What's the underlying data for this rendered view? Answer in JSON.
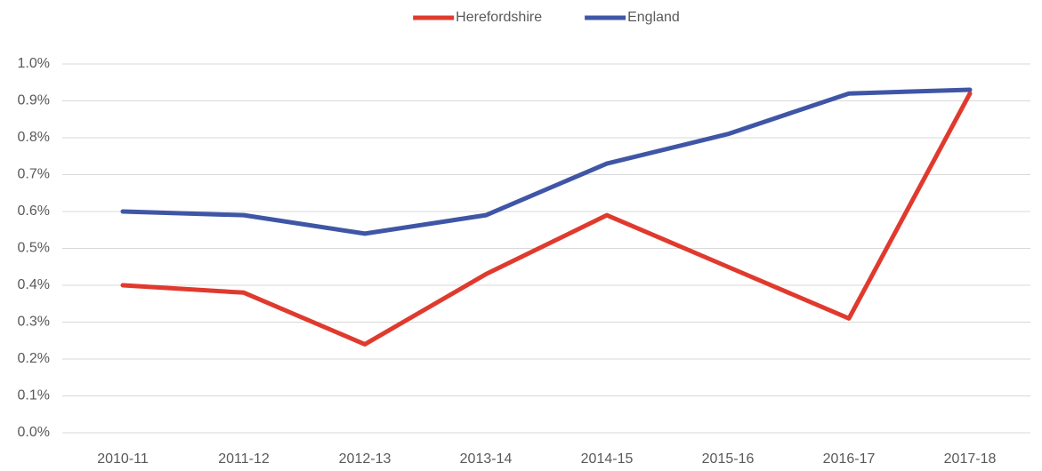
{
  "chart_data": {
    "type": "line",
    "categories": [
      "2010-11",
      "2011-12",
      "2012-13",
      "2013-14",
      "2014-15",
      "2015-16",
      "2016-17",
      "2017-18"
    ],
    "series": [
      {
        "name": "Herefordshire",
        "color": "#e03a2e",
        "values": [
          0.4,
          0.38,
          0.24,
          0.43,
          0.59,
          0.45,
          0.31,
          0.92
        ]
      },
      {
        "name": "England",
        "color": "#3f56a6",
        "values": [
          0.6,
          0.59,
          0.54,
          0.59,
          0.73,
          0.81,
          0.92,
          0.93
        ]
      }
    ],
    "ylim": [
      0,
      1.0
    ],
    "yticks": [
      {
        "value": 0,
        "label": "0.0%"
      },
      {
        "value": 0.1,
        "label": "0.1%"
      },
      {
        "value": 0.2,
        "label": "0.2%"
      },
      {
        "value": 0.3,
        "label": "0.3%"
      },
      {
        "value": 0.4,
        "label": "0.4%"
      },
      {
        "value": 0.5,
        "label": "0.5%"
      },
      {
        "value": 0.6,
        "label": "0.6%"
      },
      {
        "value": 0.7,
        "label": "0.7%"
      },
      {
        "value": 0.8,
        "label": "0.8%"
      },
      {
        "value": 0.9,
        "label": "0.9%"
      },
      {
        "value": 1.0,
        "label": "1.0%"
      }
    ],
    "grid": true,
    "legend": "top"
  }
}
